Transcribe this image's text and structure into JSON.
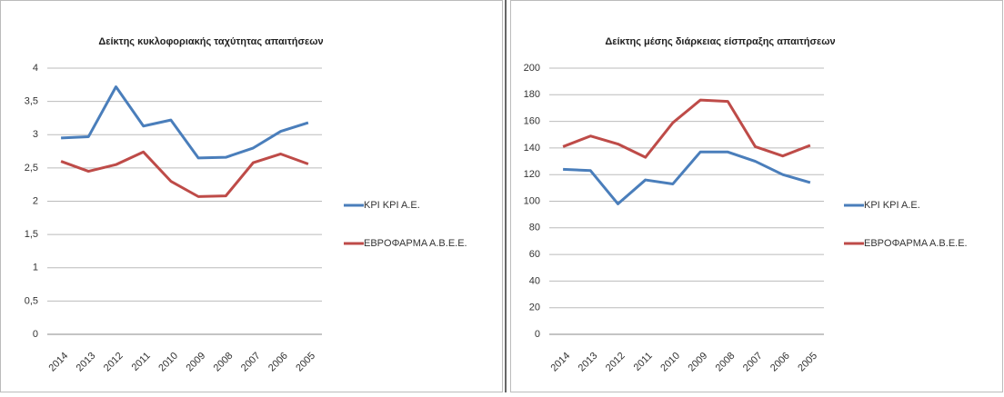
{
  "chart_data": [
    {
      "type": "line",
      "title": "Δείκτης κυκλοφοριακής ταχύτητας απαιτήσεων",
      "categories": [
        "2014",
        "2013",
        "2012",
        "2011",
        "2010",
        "2009",
        "2008",
        "2007",
        "2006",
        "2005"
      ],
      "series": [
        {
          "name": "ΚΡΙ ΚΡΙ Α.Ε.",
          "color": "#4a7ebb",
          "values": [
            2.95,
            2.97,
            3.72,
            3.13,
            3.22,
            2.65,
            2.66,
            2.8,
            3.05,
            3.18
          ]
        },
        {
          "name": "ΕΒΡΟΦΑΡΜΑ Α.Β.Ε.Ε.",
          "color": "#be4b48",
          "values": [
            2.6,
            2.45,
            2.55,
            2.74,
            2.3,
            2.07,
            2.08,
            2.58,
            2.71,
            2.56
          ]
        }
      ],
      "ylim": [
        0,
        4
      ],
      "yticks": [
        0,
        {
          "value": 0.5,
          "label": "0,5"
        },
        1,
        {
          "value": 1.5,
          "label": "1,5"
        },
        2,
        {
          "value": 2.5,
          "label": "2,5"
        },
        3,
        {
          "value": 3.5,
          "label": "3,5"
        },
        4
      ],
      "grid": true,
      "legend": "right"
    },
    {
      "type": "line",
      "title": "Δείκτης μέσης διάρκειας είσπραξης απαιτήσεων",
      "categories": [
        "2014",
        "2013",
        "2012",
        "2011",
        "2010",
        "2009",
        "2008",
        "2007",
        "2006",
        "2005"
      ],
      "series": [
        {
          "name": "ΚΡΙ ΚΡΙ Α.Ε.",
          "color": "#4a7ebb",
          "values": [
            124,
            123,
            98,
            116,
            113,
            137,
            137,
            130,
            120,
            114
          ]
        },
        {
          "name": "ΕΒΡΟΦΑΡΜΑ Α.Β.Ε.Ε.",
          "color": "#be4b48",
          "values": [
            141,
            149,
            143,
            133,
            159,
            176,
            175,
            141,
            134,
            142
          ]
        }
      ],
      "ylim": [
        0,
        200
      ],
      "yticks": [
        0,
        20,
        40,
        60,
        80,
        100,
        120,
        140,
        160,
        180,
        200
      ],
      "grid": true,
      "legend": "right"
    }
  ]
}
